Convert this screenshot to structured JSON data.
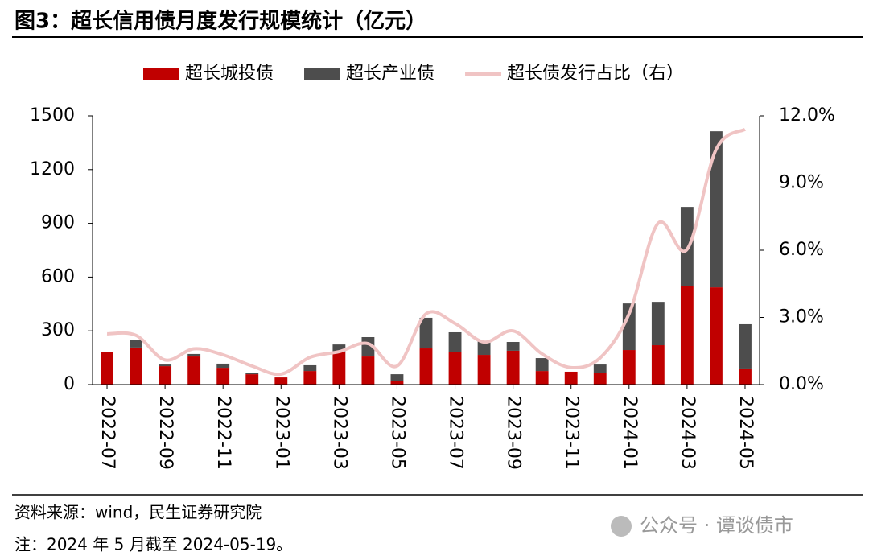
{
  "chart_data": {
    "type": "bar",
    "title": "图3：超长信用债月度发行规模统计（亿元）",
    "categories": [
      "2022-07",
      null,
      "2022-09",
      null,
      "2022-11",
      null,
      "2023-01",
      null,
      "2023-03",
      null,
      "2023-05",
      null,
      "2023-07",
      null,
      "2023-09",
      null,
      "2023-11",
      null,
      "2024-01",
      null,
      "2024-03",
      null,
      "2024-05"
    ],
    "series": [
      {
        "name": "超长城投债",
        "color": "#c00000",
        "values": [
          180,
          207,
          103,
          157,
          94,
          58,
          40,
          76,
          180,
          157,
          22,
          202,
          180,
          166,
          189,
          76,
          72,
          67,
          193,
          220,
          548,
          543,
          90
        ]
      },
      {
        "name": "超长产业债",
        "color": "#4d4d4d",
        "values": [
          0,
          44,
          9,
          14,
          23,
          9,
          0,
          32,
          44,
          108,
          36,
          171,
          112,
          77,
          49,
          72,
          0,
          45,
          260,
          242,
          444,
          871,
          247
        ]
      },
      {
        "name": "超长债发行占比（右）",
        "color": "#f0c4c4",
        "type": "line",
        "axis": "y2",
        "values": [
          2.27,
          2.2,
          1.1,
          1.6,
          1.33,
          0.83,
          0.47,
          1.22,
          1.47,
          1.83,
          0.83,
          3.16,
          2.73,
          1.9,
          2.4,
          1.37,
          0.76,
          1.19,
          3.16,
          7.2,
          6.04,
          10.5,
          11.4
        ]
      }
    ],
    "stacked": true,
    "ylim": [
      0,
      1500
    ],
    "yticks": [
      0,
      300,
      600,
      900,
      1200,
      1500
    ],
    "y2lim": [
      0,
      12
    ],
    "y2ticks": [
      {
        "value": 0,
        "label": "0.0%"
      },
      {
        "value": 3,
        "label": "3.0%"
      },
      {
        "value": 6,
        "label": "6.0%"
      },
      {
        "value": 9,
        "label": "9.0%"
      },
      {
        "value": 12,
        "label": "12.0%"
      }
    ],
    "legend": "top",
    "source": "资料来源：wind，民生证券研究院",
    "note": "注：2024 年 5 月截至 2024-05-19。"
  },
  "watermark": "公众号 · 谭谈债市"
}
